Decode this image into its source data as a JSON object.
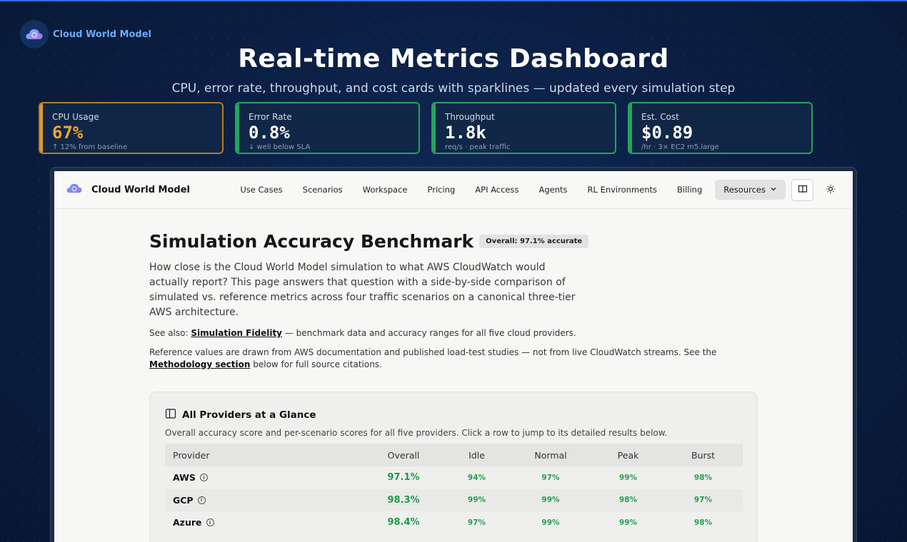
{
  "brand": {
    "name": "Cloud World Model"
  },
  "hero": {
    "title": "Real-time Metrics Dashboard",
    "subtitle": "CPU, error rate, throughput, and cost cards with sparklines — updated every simulation step"
  },
  "cards": [
    {
      "label": "CPU Usage",
      "value": "67%",
      "sub": "↑ 12% from baseline",
      "status": "warn"
    },
    {
      "label": "Error Rate",
      "value": "0.8%",
      "sub": "↓ well below SLA",
      "status": "ok"
    },
    {
      "label": "Throughput",
      "value": "1.8k",
      "sub": "req/s · peak traffic",
      "status": "ok"
    },
    {
      "label": "Est. Cost",
      "value": "$0.89",
      "sub": "/hr · 3× EC2 m5.large",
      "status": "ok"
    }
  ],
  "colors": {
    "ok": "#23a55a",
    "warn": "#e09b2d",
    "score": "#1f9a4b"
  },
  "app": {
    "brand": "Cloud World Model",
    "nav": [
      "Use Cases",
      "Scenarios",
      "Workspace",
      "Pricing",
      "API Access",
      "Agents",
      "RL Environments",
      "Billing"
    ],
    "resources_label": "Resources",
    "icons": [
      "book-icon",
      "sun-icon"
    ]
  },
  "page": {
    "title": "Simulation Accuracy Benchmark",
    "badge": "Overall: 97.1% accurate",
    "lead": "How close is the Cloud World Model simulation to what AWS CloudWatch would actually report? This page answers that question with a side-by-side comparison of simulated vs. reference metrics across four traffic scenarios on a canonical three-tier AWS architecture.",
    "see_also_prefix": "See also: ",
    "see_also_link": "Simulation Fidelity",
    "see_also_suffix": " — benchmark data and accuracy ranges for all five cloud providers.",
    "ref_text": "Reference values are drawn from AWS documentation and published load-test studies — not from live CloudWatch streams. See the ",
    "ref_link": "Methodology section",
    "ref_suffix": " below for full source citations."
  },
  "providers_panel": {
    "title": "All Providers at a Glance",
    "desc": "Overall accuracy score and per-scenario scores for all five providers. Click a row to jump to its detailed results below.",
    "columns": [
      "Provider",
      "Overall",
      "Idle",
      "Normal",
      "Peak",
      "Burst"
    ],
    "rows": [
      {
        "provider": "AWS",
        "overall": "97.1%",
        "idle": "94%",
        "normal": "97%",
        "peak": "99%",
        "burst": "98%"
      },
      {
        "provider": "GCP",
        "overall": "98.3%",
        "idle": "99%",
        "normal": "99%",
        "peak": "98%",
        "burst": "97%"
      },
      {
        "provider": "Azure",
        "overall": "98.4%",
        "idle": "97%",
        "normal": "99%",
        "peak": "99%",
        "burst": "98%"
      }
    ]
  }
}
